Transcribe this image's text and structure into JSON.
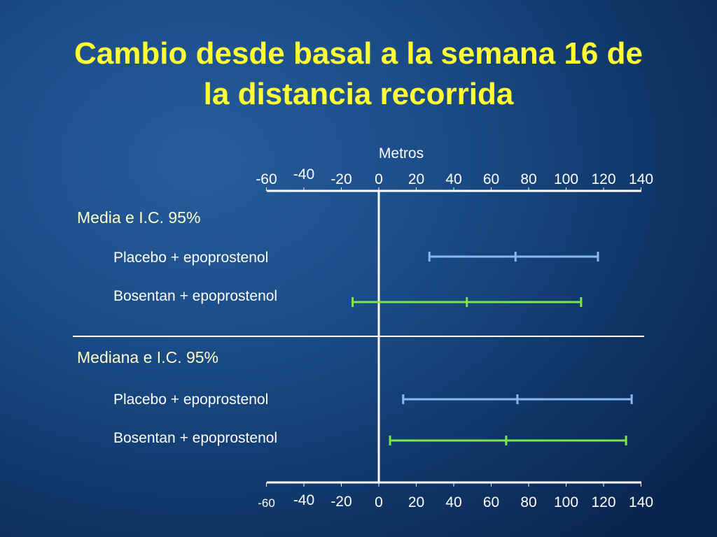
{
  "title_line1": "Cambio desde basal a la semana 16 de",
  "title_line2": "la distancia recorrida",
  "colors": {
    "background": "#1a4b86",
    "title": "#ffff33",
    "text": "#ffffff",
    "section_label": "#ffffcc",
    "placebo": "#88b8f0",
    "bosentan": "#7be84a"
  },
  "chart_data": {
    "type": "forest",
    "xlabel": "Metros",
    "xlim": [
      -60,
      140
    ],
    "top_ticks": [
      "-60",
      "-40",
      "-20",
      "0",
      "20",
      "40",
      "60",
      "80",
      "100",
      "120",
      "140"
    ],
    "bottom_ticks": [
      "-60",
      "-40",
      "-20",
      "0",
      "20",
      "40",
      "60",
      "80",
      "100",
      "120",
      "140"
    ],
    "sections": [
      {
        "label": "Media e I.C. 95%",
        "rows": [
          {
            "label": "Placebo + epoprostenol",
            "series": "placebo",
            "estimate": 73,
            "ci_low": 27,
            "ci_high": 117
          },
          {
            "label": "Bosentan + epoprostenol",
            "series": "bosentan",
            "estimate": 47,
            "ci_low": -14,
            "ci_high": 108
          }
        ]
      },
      {
        "label": "Mediana e I.C. 95%",
        "rows": [
          {
            "label": "Placebo + epoprostenol",
            "series": "placebo",
            "estimate": 74,
            "ci_low": 13,
            "ci_high": 135
          },
          {
            "label": "Bosentan + epoprostenol",
            "series": "bosentan",
            "estimate": 68,
            "ci_low": 6,
            "ci_high": 132
          }
        ]
      }
    ]
  }
}
